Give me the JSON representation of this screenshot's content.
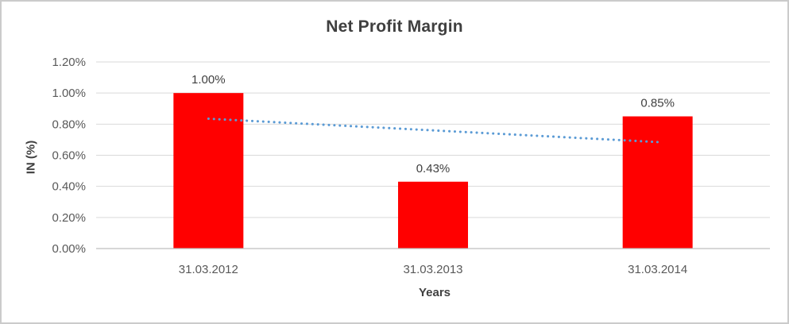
{
  "chart_data": {
    "type": "bar",
    "title": "Net Profit Margin",
    "xlabel": "Years",
    "ylabel": "IN (%)",
    "categories": [
      "31.03.2012",
      "31.03.2013",
      "31.03.2014"
    ],
    "values": [
      1.0,
      0.43,
      0.85
    ],
    "data_labels": [
      "1.00%",
      "0.43%",
      "0.85%"
    ],
    "ytick_step": 0.2,
    "ytick_labels": [
      "0.00%",
      "0.20%",
      "0.40%",
      "0.60%",
      "0.80%",
      "1.00%",
      "1.20%"
    ],
    "ylim": [
      0,
      1.2
    ],
    "grid": true,
    "legend": "none",
    "bar_color": "#FF0000",
    "trendline": {
      "type": "linear",
      "style": "dotted",
      "color": "#5B9BD5",
      "start_value": 0.835,
      "end_value": 0.685
    },
    "colors": {
      "title_text": "#3F3F3F",
      "axis_text": "#595959",
      "label_text": "#404040",
      "gridline": "#D9D9D9",
      "axis_line": "#BFBFBF",
      "border": "#CBCBCB",
      "background": "#FFFFFF"
    }
  }
}
